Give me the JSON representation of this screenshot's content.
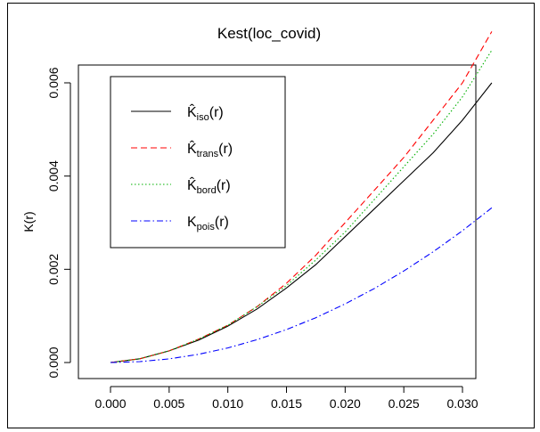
{
  "chart_data": {
    "type": "line",
    "title": "Kest(loc_covid)",
    "xlabel": "",
    "ylabel": "K(r)",
    "xlim": [
      0,
      0.0325
    ],
    "ylim": [
      0,
      0.0071
    ],
    "xticks": [
      "0.000",
      "0.005",
      "0.010",
      "0.015",
      "0.020",
      "0.025",
      "0.030"
    ],
    "yticks": [
      "0.000",
      "0.002",
      "0.004",
      "0.006"
    ],
    "grid": false,
    "legend_position": "top-left",
    "series": [
      {
        "name": "K̂iso(r)",
        "label_main": "K̂",
        "label_sub": "iso",
        "label_tail": "(r)",
        "color": "#000000",
        "linestyle": "solid",
        "x": [
          0,
          0.0025,
          0.005,
          0.0075,
          0.01,
          0.0125,
          0.015,
          0.0175,
          0.02,
          0.0225,
          0.025,
          0.0275,
          0.03,
          0.0325
        ],
        "y": [
          0,
          8e-05,
          0.00025,
          0.00048,
          0.00078,
          0.00115,
          0.0016,
          0.0021,
          0.0027,
          0.0033,
          0.0039,
          0.0045,
          0.0052,
          0.006
        ]
      },
      {
        "name": "K̂trans(r)",
        "label_main": "K̂",
        "label_sub": "trans",
        "label_tail": "(r)",
        "color": "#ff0000",
        "linestyle": "dashed",
        "x": [
          0,
          0.0025,
          0.005,
          0.0075,
          0.01,
          0.0125,
          0.015,
          0.0175,
          0.02,
          0.0225,
          0.025,
          0.0275,
          0.03,
          0.0325
        ],
        "y": [
          0,
          8e-05,
          0.00025,
          0.0005,
          0.0008,
          0.0012,
          0.0017,
          0.0023,
          0.003,
          0.0037,
          0.0044,
          0.0052,
          0.006,
          0.0071
        ]
      },
      {
        "name": "K̂bord(r)",
        "label_main": "K̂",
        "label_sub": "bord",
        "label_tail": "(r)",
        "color": "#00b000",
        "linestyle": "dotted",
        "x": [
          0,
          0.0025,
          0.005,
          0.0075,
          0.01,
          0.0125,
          0.015,
          0.0175,
          0.02,
          0.0225,
          0.025,
          0.0275,
          0.03,
          0.0325
        ],
        "y": [
          0,
          8e-05,
          0.00025,
          0.0005,
          0.0008,
          0.0012,
          0.00165,
          0.0022,
          0.0028,
          0.0035,
          0.0042,
          0.0049,
          0.0057,
          0.0067
        ]
      },
      {
        "name": "Kpois(r)",
        "label_main": "K",
        "label_sub": "pois",
        "label_tail": "(r)",
        "color": "#0000ff",
        "linestyle": "dashdot",
        "x": [
          0,
          0.0025,
          0.005,
          0.0075,
          0.01,
          0.0125,
          0.015,
          0.0175,
          0.02,
          0.0225,
          0.025,
          0.0275,
          0.03,
          0.0325
        ],
        "y": [
          0,
          1.96e-05,
          7.85e-05,
          0.0001767,
          0.000314,
          0.0004909,
          0.0007069,
          0.0009621,
          0.0012566,
          0.0015904,
          0.0019635,
          0.0023758,
          0.0028274,
          0.0033183
        ]
      }
    ]
  }
}
